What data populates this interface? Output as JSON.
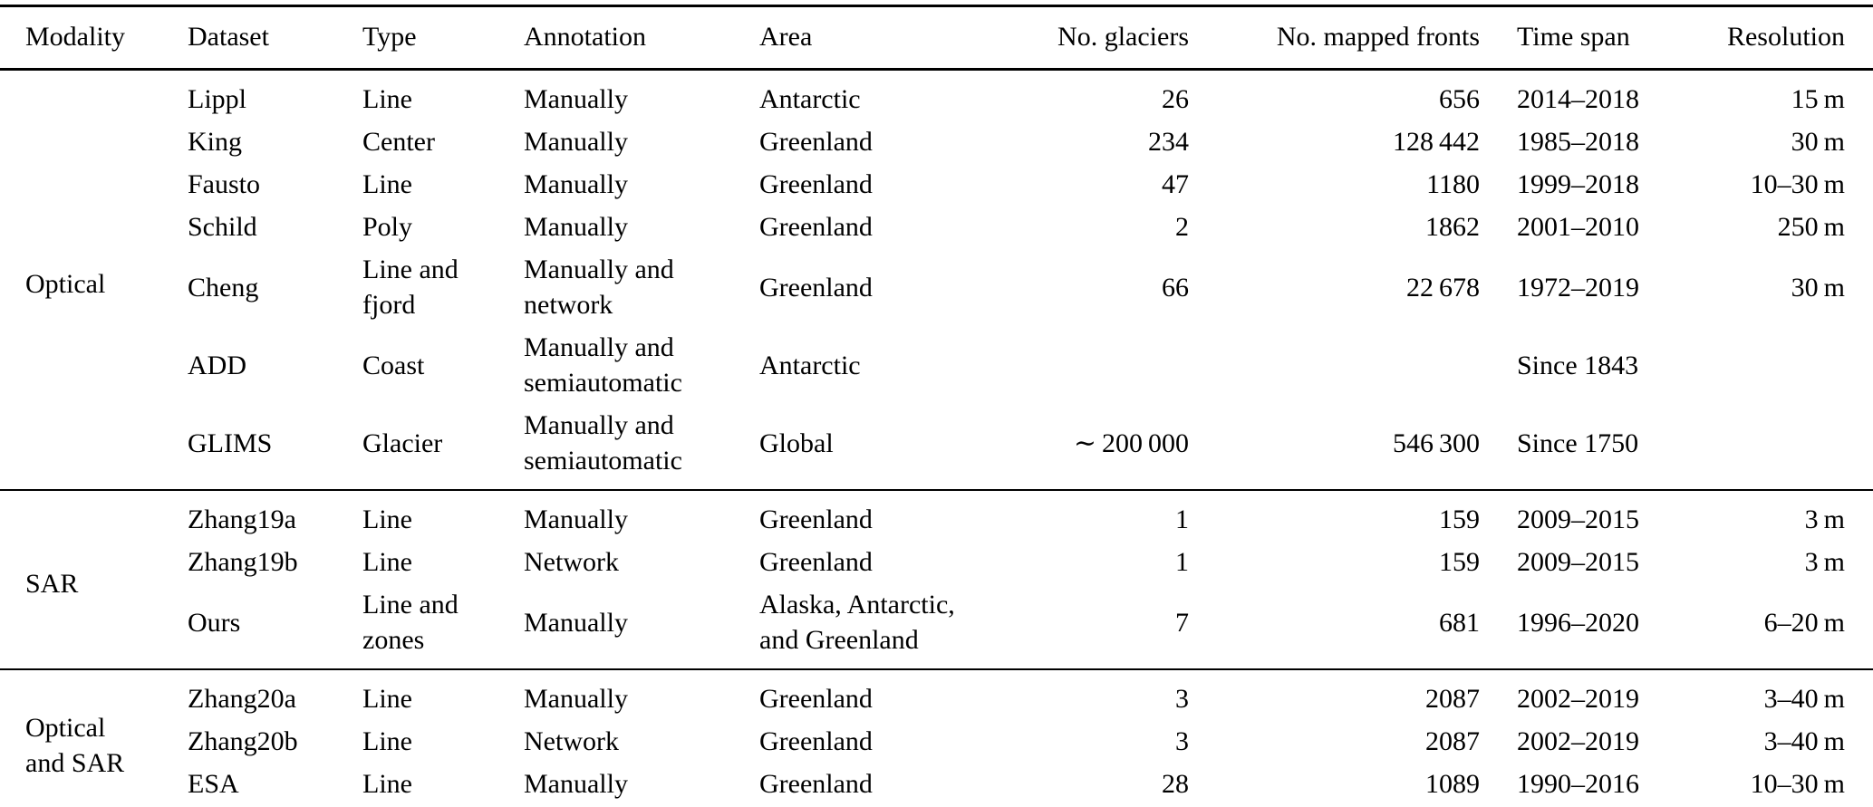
{
  "table": {
    "columns": [
      {
        "key": "modality",
        "label": "Modality",
        "align": "left"
      },
      {
        "key": "dataset",
        "label": "Dataset",
        "align": "left"
      },
      {
        "key": "type",
        "label": "Type",
        "align": "left"
      },
      {
        "key": "annotation",
        "label": "Annotation",
        "align": "left"
      },
      {
        "key": "area",
        "label": "Area",
        "align": "left"
      },
      {
        "key": "glaciers",
        "label": "No. glaciers",
        "align": "right"
      },
      {
        "key": "fronts",
        "label": "No. mapped fronts",
        "align": "right"
      },
      {
        "key": "timespan",
        "label": "Time span",
        "align": "left"
      },
      {
        "key": "resolution",
        "label": "Resolution",
        "align": "right"
      }
    ],
    "sections": [
      {
        "id": "optical",
        "modality": "Optical",
        "rows": [
          {
            "dataset": "Lippl",
            "type": "Line",
            "annotation": "Manually",
            "area": "Antarctic",
            "glaciers": "26",
            "fronts": "656",
            "timespan": "2014–2018",
            "resolution": "15 m"
          },
          {
            "dataset": "King",
            "type": "Center",
            "annotation": "Manually",
            "area": "Greenland",
            "glaciers": "234",
            "fronts": "128 442",
            "timespan": "1985–2018",
            "resolution": "30 m"
          },
          {
            "dataset": "Fausto",
            "type": "Line",
            "annotation": "Manually",
            "area": "Greenland",
            "glaciers": "47",
            "fronts": "1180",
            "timespan": "1999–2018",
            "resolution": "10–30 m"
          },
          {
            "dataset": "Schild",
            "type": "Poly",
            "annotation": "Manually",
            "area": "Greenland",
            "glaciers": "2",
            "fronts": "1862",
            "timespan": "2001–2010",
            "resolution": "250 m"
          },
          {
            "dataset": "Cheng",
            "type": "Line and\nfjord",
            "annotation": "Manually and\nnetwork",
            "area": "Greenland",
            "glaciers": "66",
            "fronts": "22 678",
            "timespan": "1972–2019",
            "resolution": "30 m"
          },
          {
            "dataset": "ADD",
            "type": "Coast",
            "annotation": "Manually and\nsemiautomatic",
            "area": "Antarctic",
            "glaciers": "",
            "fronts": "",
            "timespan": "Since 1843",
            "resolution": ""
          },
          {
            "dataset": "GLIMS",
            "type": "Glacier",
            "annotation": "Manually and\nsemiautomatic",
            "area": "Global",
            "glaciers": "∼ 200 000",
            "fronts": "546 300",
            "timespan": "Since 1750",
            "resolution": ""
          }
        ]
      },
      {
        "id": "sar",
        "modality": "SAR",
        "rows": [
          {
            "dataset": "Zhang19a",
            "type": "Line",
            "annotation": "Manually",
            "area": "Greenland",
            "glaciers": "1",
            "fronts": "159",
            "timespan": "2009–2015",
            "resolution": "3 m"
          },
          {
            "dataset": "Zhang19b",
            "type": "Line",
            "annotation": "Network",
            "area": "Greenland",
            "glaciers": "1",
            "fronts": "159",
            "timespan": "2009–2015",
            "resolution": "3 m"
          },
          {
            "dataset": "Ours",
            "type": "Line and\nzones",
            "annotation": "Manually",
            "area": "Alaska, Antarctic,\nand Greenland",
            "glaciers": "7",
            "fronts": "681",
            "timespan": "1996–2020",
            "resolution": "6–20 m"
          }
        ]
      },
      {
        "id": "optical-and-sar",
        "modality": "Optical\nand SAR",
        "rows": [
          {
            "dataset": "Zhang20a",
            "type": "Line",
            "annotation": "Manually",
            "area": "Greenland",
            "glaciers": "3",
            "fronts": "2087",
            "timespan": "2002–2019",
            "resolution": "3–40 m"
          },
          {
            "dataset": "Zhang20b",
            "type": "Line",
            "annotation": "Network",
            "area": "Greenland",
            "glaciers": "3",
            "fronts": "2087",
            "timespan": "2002–2019",
            "resolution": "3–40 m"
          },
          {
            "dataset": "ESA",
            "type": "Line",
            "annotation": "Manually",
            "area": "Greenland",
            "glaciers": "28",
            "fronts": "1089",
            "timespan": "1990–2016",
            "resolution": "10–30 m"
          }
        ]
      }
    ]
  }
}
